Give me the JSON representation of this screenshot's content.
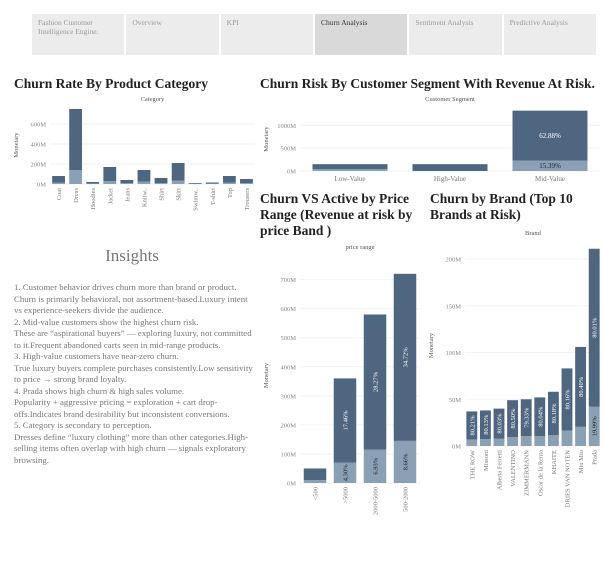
{
  "nav": {
    "tabs": [
      {
        "label": "Fashion Customer Intelligence Engine."
      },
      {
        "label": "Overview"
      },
      {
        "label": "KPI"
      },
      {
        "label": "Churn Analysis",
        "active": true
      },
      {
        "label": "Sentiment Analysis"
      },
      {
        "label": "Predictive Analysis"
      }
    ]
  },
  "colors": {
    "churn": "#4e6680",
    "active": "#8aa0b4"
  },
  "insights": {
    "title": "Insights",
    "lines": [
      "1. Customer behavior drives churn more than brand or product.",
      "Churn is primarily behavioral, not assortment-based.Luxury intent vs experience-seekers divide the audience.",
      "2. Mid-value customers show the highest churn risk.",
      "These are “aspirational buyers” — exploring luxury, not committed to it.Frequent abandoned carts seen in mid-range products.",
      "3. High-value customers have near-zero churn.",
      "True luxury buyers complete purchases consistently.Low sensitivity to price → strong brand loyalty.",
      "4. Prada shows high churn & high sales volume.",
      "Popularity + aggressive pricing = exploration + cart drop-offs.Indicates brand desirability but inconsistent conversions.",
      "5. Category is secondary to perception.",
      "Dresses define “luxury clothing” more than other categories.High-selling items often overlap with high churn — signals exploratory browsing."
    ]
  },
  "chart_data": [
    {
      "id": "category",
      "type": "bar",
      "stacked": true,
      "title": "Churn Rate By Product Category",
      "subtitle": "Category",
      "ylabel": "Monetary",
      "ylim": [
        0,
        780
      ],
      "yticks": [
        "0M",
        "200M",
        "400M",
        "600M"
      ],
      "ytick_values": [
        0,
        200,
        400,
        600
      ],
      "categories": [
        "Coat",
        "Dress",
        "Hoodies",
        "Jacket",
        "Jeans",
        "Knitw..",
        "Shirt",
        "Skirt",
        "Swimw..",
        "T-shirt",
        "Top",
        "Trousers"
      ],
      "series": [
        {
          "values": [
            15,
            140,
            5,
            30,
            8,
            25,
            10,
            35,
            3,
            4,
            15,
            10
          ]
        },
        {
          "values": [
            65,
            610,
            15,
            140,
            32,
            115,
            50,
            175,
            7,
            11,
            65,
            40
          ]
        }
      ],
      "labels": [
        [],
        []
      ]
    },
    {
      "id": "segment",
      "type": "bar",
      "stacked": true,
      "title": "Churn Risk By Customer Segment With Revenue At Risk.",
      "subtitle": "Customer Segment",
      "ylabel": "Monetary",
      "ylim": [
        0,
        1400
      ],
      "yticks": [
        "0M",
        "500M",
        "1000M"
      ],
      "ytick_values": [
        0,
        500,
        1000
      ],
      "categories": [
        "Low-Value",
        "High-Value",
        "Mid-Value"
      ],
      "series": [
        {
          "values": [
            40,
            0,
            230
          ]
        },
        {
          "values": [
            110,
            150,
            1090
          ]
        }
      ],
      "labels": [
        [
          "",
          "",
          "15.39%"
        ],
        [
          "",
          "",
          "62.88%"
        ]
      ]
    },
    {
      "id": "price",
      "type": "bar",
      "stacked": true,
      "title": "Churn VS Active by Price Range (Revenue at risk by price Band )",
      "subtitle": "price range",
      "ylabel": "Monetary",
      "ylim": [
        0,
        740
      ],
      "yticks": [
        "0M",
        "100M",
        "200M",
        "300M",
        "400M",
        "500M",
        "600M",
        "700M"
      ],
      "ytick_values": [
        0,
        100,
        200,
        300,
        400,
        500,
        600,
        700
      ],
      "categories": [
        "<500",
        ">5000",
        "2000-5000",
        "500-2000"
      ],
      "series": [
        {
          "values": [
            10,
            70,
            115,
            145
          ]
        },
        {
          "values": [
            40,
            290,
            465,
            575
          ]
        }
      ],
      "labels": [
        [
          "",
          "4.30%",
          "6.93%",
          "8.66%"
        ],
        [
          "",
          "17.46%",
          "28.27%",
          "34.72%"
        ]
      ]
    },
    {
      "id": "brand",
      "type": "bar",
      "stacked": true,
      "title": "Churn by Brand (Top 10 Brands at Risk)",
      "subtitle": "Brand",
      "ylabel": "Monetary",
      "ylim": [
        0,
        215
      ],
      "yticks": [
        "0M",
        "50M",
        "100M",
        "150M",
        "200M"
      ],
      "ytick_values": [
        0,
        50,
        100,
        150,
        200
      ],
      "categories": [
        "THE ROW",
        "Missoni",
        "Alberta Ferretti",
        "VALENTINO",
        "ZIMMERMANN",
        "Oscar de la Renta",
        "KHAITE",
        "DRIES VAN NOTEN",
        "Miu Miu",
        "Prada"
      ],
      "series": [
        {
          "values": [
            7,
            7.5,
            8,
            9.5,
            10.5,
            10.5,
            11.5,
            16.5,
            20.5,
            42
          ]
        },
        {
          "values": [
            30,
            30.5,
            32,
            39.5,
            39.5,
            41.5,
            46.5,
            66.5,
            85.5,
            169
          ]
        }
      ],
      "labels": [
        [
          "",
          "",
          "",
          "",
          "",
          "",
          "",
          "",
          "",
          "19.99%"
        ],
        [
          "80.21%",
          "80.13%",
          "80.03%",
          "80.50%",
          "79.33%",
          "80.04%",
          "80.18%",
          "80.16%",
          "80.40%",
          "80.01%"
        ]
      ]
    }
  ]
}
